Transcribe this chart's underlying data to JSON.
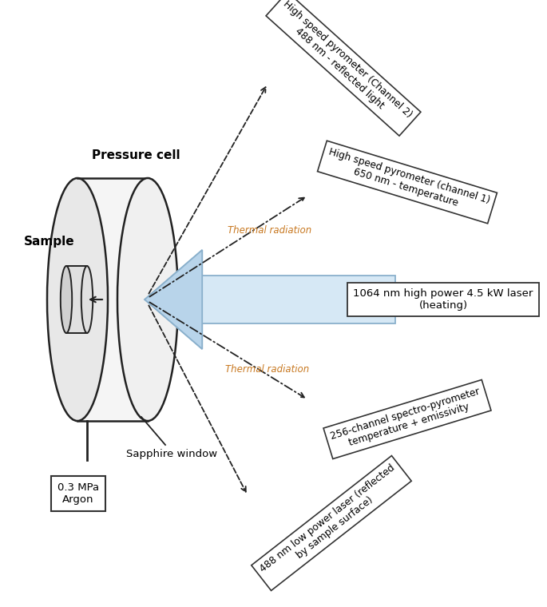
{
  "fig_width": 6.85,
  "fig_height": 7.6,
  "bg_color": "#ffffff",
  "arrow_color_light": "#d6e8f5",
  "arrow_color_mid": "#b8d4ea",
  "arrow_edge_color": "#8ab0cc",
  "label_color": "#222222",
  "thermal_color": "#c87820",
  "box_edge_color": "#333333",
  "pressure_cell_label": "Pressure cell",
  "sample_label": "Sample",
  "argon_label": "0.3 MPa\nArgon",
  "sapphire_label": "Sapphire window",
  "laser_box_text": "1064 nm high power 4.5 kW laser\n(heating)",
  "channel2_text": "High speed pyrometer (Channel 2)\n488 nm - reflected light",
  "channel1_text": "High speed pyrometer (channel 1)\n650 nm - temperature",
  "spectro_text": "256-channel spectro-pyrometer\ntemperature + emissivity",
  "laser488_text": "488 nm low power laser (reflected\nby sample surface)",
  "thermal_upper": "Thermal radiation",
  "thermal_lower": "Thermal radiation"
}
